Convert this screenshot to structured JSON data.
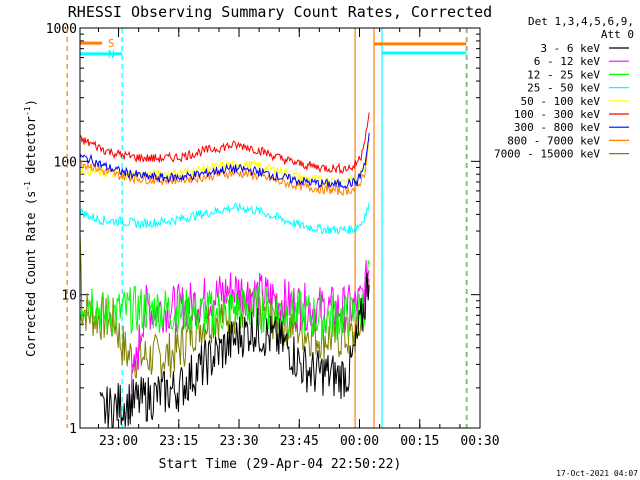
{
  "chart_data": {
    "type": "line",
    "title": "RHESSI Observing Summary Count Rates, Corrected",
    "ylabel": "Corrected Count Rate (s",
    "ylabel_sup": "-1",
    "ylabel_tail": " detector",
    "ylabel_sup2": "-1",
    "ylabel_end": ")",
    "xlabel": "Start Time (29-Apr-04 22:50:22)",
    "footer": "17-Oct-2021 04:07",
    "yscale": "log",
    "ylim": [
      1,
      1000
    ],
    "xlim": [
      "22:50:22",
      "00:30:00"
    ],
    "yticks": [
      {
        "v": 1,
        "label": "1"
      },
      {
        "v": 10,
        "label": "10"
      },
      {
        "v": 100,
        "label": "100"
      },
      {
        "v": 1000,
        "label": "1000"
      }
    ],
    "xticks": [
      {
        "t": "23:00",
        "min": 9.6
      },
      {
        "t": "23:15",
        "min": 24.6
      },
      {
        "t": "23:30",
        "min": 39.6
      },
      {
        "t": "23:45",
        "min": 54.6
      },
      {
        "t": "00:00",
        "min": 69.6
      },
      {
        "t": "00:15",
        "min": 84.6
      },
      {
        "t": "00:30",
        "min": 99.6
      }
    ],
    "legend": {
      "header1": "Det 1,3,4,5,6,9,",
      "header2": "Att 0",
      "placement": "right"
    },
    "series": [
      {
        "name": "3 - 6 keV",
        "color": "#000000",
        "points": [
          [
            5,
            1.3
          ],
          [
            10,
            1.5
          ],
          [
            15,
            1.6
          ],
          [
            20,
            1.8
          ],
          [
            25,
            2
          ],
          [
            28,
            2.5
          ],
          [
            31,
            3
          ],
          [
            34,
            3.6
          ],
          [
            37,
            4.2
          ],
          [
            40,
            5
          ],
          [
            43,
            5.6
          ],
          [
            46,
            5
          ],
          [
            49,
            4.6
          ],
          [
            52,
            4
          ],
          [
            55,
            3
          ],
          [
            58,
            2.6
          ],
          [
            61,
            2.6
          ],
          [
            64,
            2.4
          ],
          [
            67,
            2.6
          ],
          [
            69,
            4.5
          ],
          [
            71,
            9
          ],
          [
            72,
            14
          ]
        ]
      },
      {
        "name": "6 - 12 keV",
        "color": "#ff00ff",
        "points": [
          [
            12,
            1.5
          ],
          [
            14,
            3
          ],
          [
            16,
            8
          ],
          [
            20,
            7.8
          ],
          [
            25,
            8
          ],
          [
            30,
            9
          ],
          [
            35,
            10
          ],
          [
            38,
            11
          ],
          [
            41,
            10.5
          ],
          [
            44,
            10
          ],
          [
            47,
            9.6
          ],
          [
            50,
            9
          ],
          [
            55,
            8.2
          ],
          [
            60,
            7.8
          ],
          [
            65,
            7.8
          ],
          [
            68,
            8
          ],
          [
            70,
            9
          ],
          [
            71,
            11
          ],
          [
            72,
            16
          ]
        ]
      },
      {
        "name": "12 - 25 keV",
        "color": "#00ff00",
        "points": [
          [
            0,
            8.5
          ],
          [
            3,
            9.5
          ],
          [
            6,
            7
          ],
          [
            10,
            7.5
          ],
          [
            15,
            7.8
          ],
          [
            20,
            7.8
          ],
          [
            25,
            7.5
          ],
          [
            30,
            7.2
          ],
          [
            35,
            7.5
          ],
          [
            40,
            7.8
          ],
          [
            45,
            7.8
          ],
          [
            50,
            7.5
          ],
          [
            55,
            7.2
          ],
          [
            60,
            6.8
          ],
          [
            65,
            6.8
          ],
          [
            69,
            7
          ],
          [
            71,
            9
          ],
          [
            72,
            16
          ]
        ]
      },
      {
        "name": "25 - 50 keV",
        "color": "#00ffff",
        "points": [
          [
            0,
            42
          ],
          [
            3,
            38
          ],
          [
            6,
            36
          ],
          [
            10,
            35.5
          ],
          [
            15,
            34
          ],
          [
            20,
            35
          ],
          [
            25,
            37
          ],
          [
            30,
            40
          ],
          [
            35,
            43
          ],
          [
            38,
            45
          ],
          [
            41,
            44.5
          ],
          [
            45,
            42
          ],
          [
            50,
            37
          ],
          [
            55,
            33
          ],
          [
            60,
            31
          ],
          [
            65,
            30.5
          ],
          [
            68,
            31
          ],
          [
            70,
            34
          ],
          [
            72,
            46
          ]
        ]
      },
      {
        "name": "50 - 100 keV",
        "color": "#ffff00",
        "points": [
          [
            0,
            87
          ],
          [
            5,
            82
          ],
          [
            10,
            80
          ],
          [
            15,
            79
          ],
          [
            20,
            80
          ],
          [
            25,
            82
          ],
          [
            30,
            87
          ],
          [
            35,
            92
          ],
          [
            40,
            95
          ],
          [
            45,
            92
          ],
          [
            50,
            84
          ],
          [
            55,
            76
          ],
          [
            60,
            72
          ],
          [
            65,
            71
          ],
          [
            69,
            74
          ],
          [
            71,
            90
          ],
          [
            72,
            140
          ]
        ]
      },
      {
        "name": "100 - 300 keV",
        "color": "#ff0000",
        "points": [
          [
            0,
            146
          ],
          [
            3,
            135
          ],
          [
            6,
            122
          ],
          [
            10,
            112
          ],
          [
            15,
            106
          ],
          [
            20,
            105
          ],
          [
            25,
            108
          ],
          [
            30,
            118
          ],
          [
            35,
            127
          ],
          [
            38,
            132
          ],
          [
            41,
            130
          ],
          [
            45,
            120
          ],
          [
            50,
            105
          ],
          [
            55,
            95
          ],
          [
            60,
            90
          ],
          [
            65,
            88
          ],
          [
            68,
            90
          ],
          [
            70,
            110
          ],
          [
            72,
            220
          ]
        ]
      },
      {
        "name": "300 - 800 keV",
        "color": "#0000ff",
        "points": [
          [
            0,
            108
          ],
          [
            3,
            102
          ],
          [
            6,
            92
          ],
          [
            10,
            84
          ],
          [
            15,
            78
          ],
          [
            20,
            75
          ],
          [
            25,
            76
          ],
          [
            30,
            80
          ],
          [
            35,
            86
          ],
          [
            38,
            88
          ],
          [
            41,
            87
          ],
          [
            45,
            83
          ],
          [
            50,
            76
          ],
          [
            55,
            71
          ],
          [
            60,
            68
          ],
          [
            65,
            67
          ],
          [
            69,
            70
          ],
          [
            71,
            95
          ],
          [
            72,
            160
          ]
        ]
      },
      {
        "name": "800 - 7000 keV",
        "color": "#ff8000",
        "points": [
          [
            0,
            98
          ],
          [
            3,
            92
          ],
          [
            6,
            84
          ],
          [
            10,
            78
          ],
          [
            15,
            74
          ],
          [
            20,
            72
          ],
          [
            25,
            73
          ],
          [
            30,
            76
          ],
          [
            35,
            80
          ],
          [
            38,
            82
          ],
          [
            41,
            81
          ],
          [
            45,
            77
          ],
          [
            50,
            70
          ],
          [
            55,
            65
          ],
          [
            60,
            62
          ],
          [
            65,
            60
          ],
          [
            69,
            62
          ],
          [
            71,
            85
          ],
          [
            72,
            150
          ]
        ]
      },
      {
        "name": "7000 - 15000 keV",
        "color": "#808000",
        "points": [
          [
            0,
            30
          ],
          [
            0.5,
            8
          ],
          [
            3,
            7
          ],
          [
            6,
            6.5
          ],
          [
            9,
            6.3
          ],
          [
            10,
            4.5
          ],
          [
            12,
            3.5
          ],
          [
            15,
            3.4
          ],
          [
            20,
            3.4
          ],
          [
            23,
            3.6
          ],
          [
            26,
            4.3
          ],
          [
            28,
            5.5
          ],
          [
            31,
            6.2
          ],
          [
            34,
            6.8
          ],
          [
            37,
            7.2
          ],
          [
            40,
            7.8
          ],
          [
            43,
            7.5
          ],
          [
            46,
            7.2
          ],
          [
            49,
            6.5
          ],
          [
            52,
            6
          ],
          [
            55,
            5.5
          ],
          [
            58,
            5
          ],
          [
            61,
            4.8
          ],
          [
            64,
            4.8
          ],
          [
            67,
            4.8
          ],
          [
            69,
            5
          ],
          [
            71,
            8
          ],
          [
            72,
            12
          ]
        ]
      }
    ],
    "flags": [
      {
        "label": "S",
        "color": "#ff8000",
        "start": 0,
        "end": 5.5,
        "y": 770
      },
      {
        "label": "N",
        "color": "#00ffff",
        "start": -10,
        "end": 10.5,
        "y": 640
      }
    ],
    "flag_tails": [
      {
        "color": "#ff8000",
        "start": 73.2,
        "end": 96.2,
        "y": 760
      },
      {
        "color": "#00ffff",
        "start": 75.2,
        "end": 96.2,
        "y": 650
      }
    ],
    "vlines": [
      {
        "min": -3.2,
        "color": "#ff8000",
        "style": "dash"
      },
      {
        "min": 10.5,
        "color": "#00ffff",
        "style": "dash"
      },
      {
        "min": 68.5,
        "color": "#ff8000",
        "style": "solid"
      },
      {
        "min": 73.2,
        "color": "#ff8000",
        "style": "solid"
      },
      {
        "min": 75.2,
        "color": "#00ffff",
        "style": "solid"
      },
      {
        "min": 96.2,
        "color": "#ff8000",
        "style": "dash"
      },
      {
        "min": 96.4,
        "color": "#00ffff",
        "style": "dash"
      }
    ]
  }
}
